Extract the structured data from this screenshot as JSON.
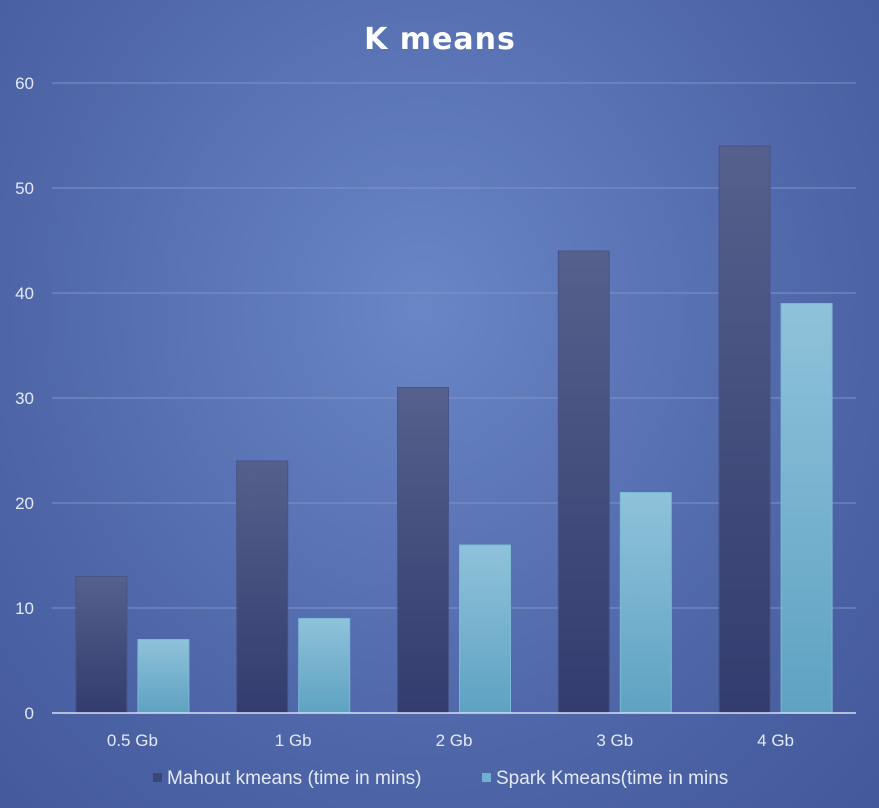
{
  "chart_data": {
    "type": "bar",
    "title": "K means",
    "categories": [
      "0.5 Gb",
      "1 Gb",
      "2 Gb",
      "3 Gb",
      "4 Gb"
    ],
    "series": [
      {
        "name": "Mahout kmeans (time in mins)",
        "values": [
          13,
          24,
          31,
          44,
          54
        ],
        "color": "#3b4578"
      },
      {
        "name": "Spark Kmeans(time in mins",
        "values": [
          7,
          9,
          16,
          21,
          39
        ],
        "color": "#6fb0cf"
      }
    ],
    "ylim": [
      0,
      60
    ],
    "yticks": [
      0,
      10,
      20,
      30,
      40,
      50,
      60
    ],
    "grid": true,
    "legend_position": "bottom"
  }
}
